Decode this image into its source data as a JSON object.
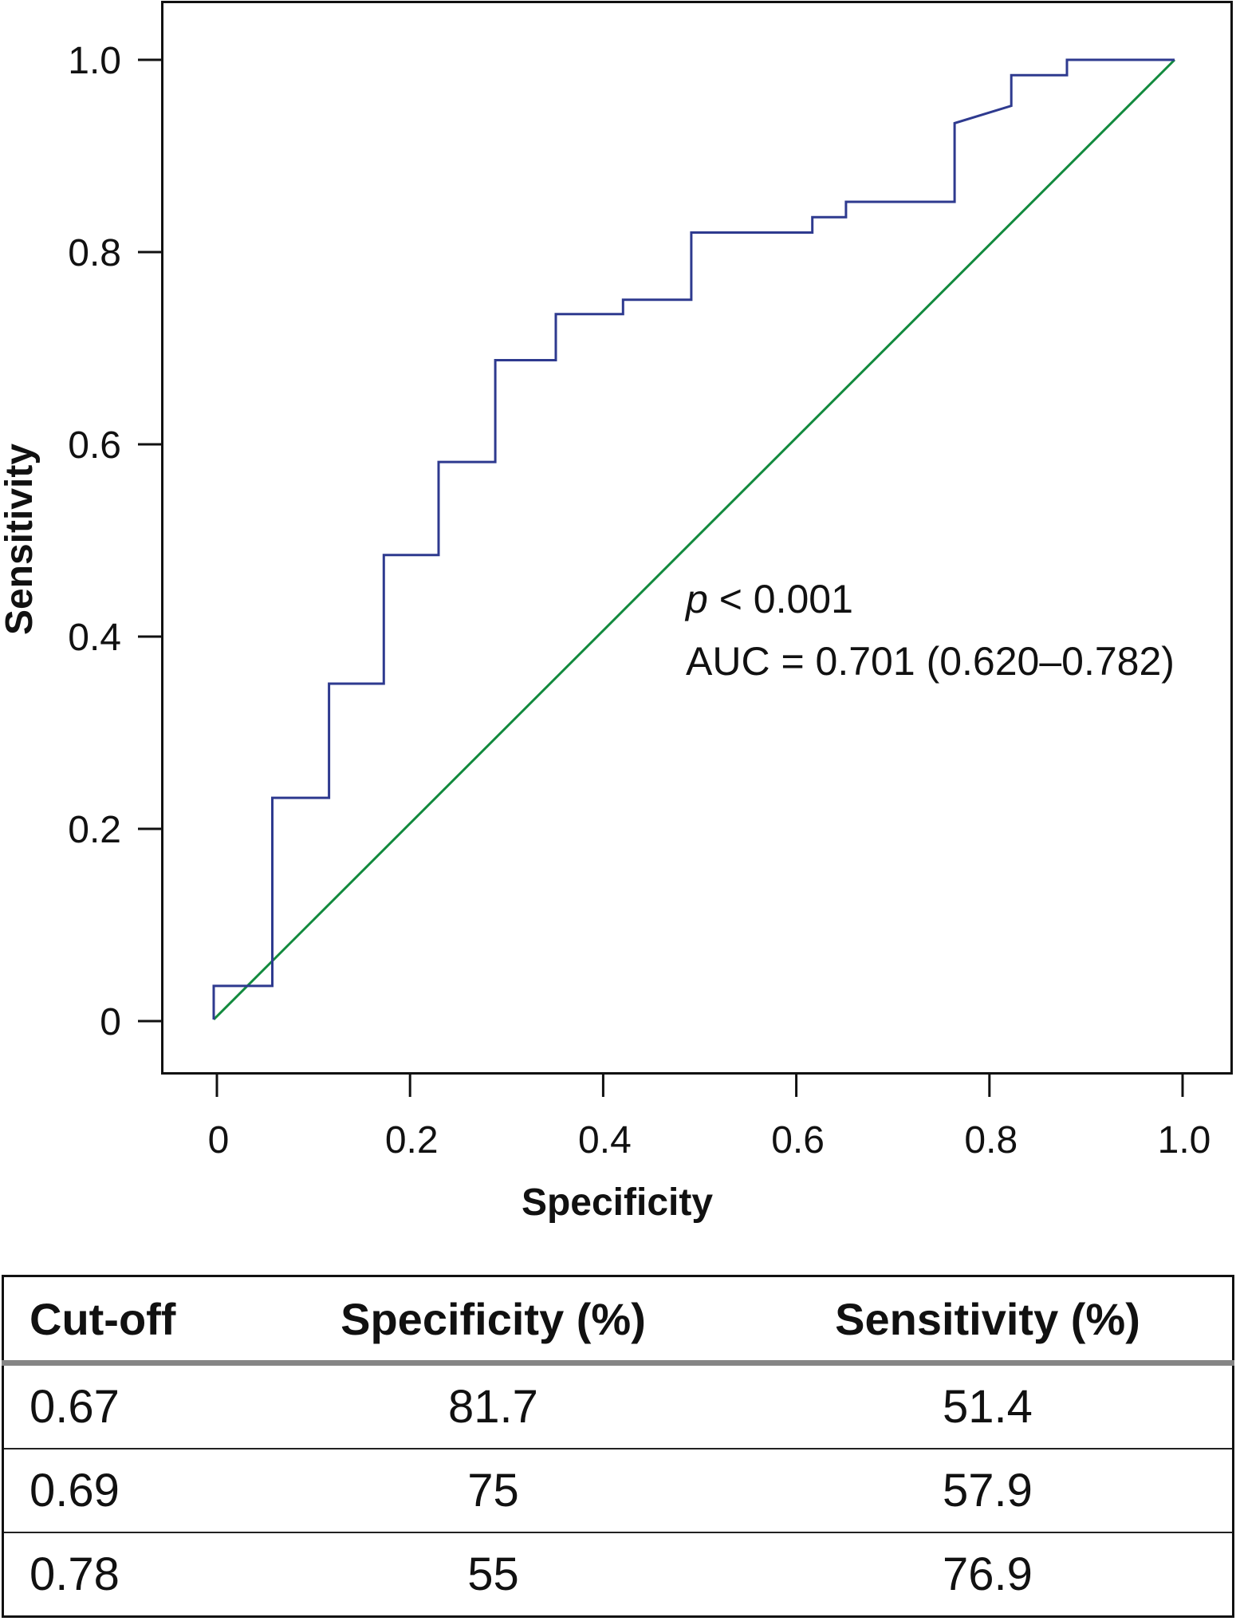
{
  "chart_data": {
    "type": "line",
    "title": "",
    "xlabel": "Specificity",
    "ylabel": "Sensitivity",
    "xlim": [
      0,
      1
    ],
    "ylim": [
      0,
      1
    ],
    "grid": false,
    "x_ticks": [
      "0",
      "0.2",
      "0.4",
      "0.6",
      "0.8",
      "1.0"
    ],
    "x_tick_values": [
      0,
      0.2,
      0.4,
      0.6,
      0.8,
      1.0
    ],
    "y_ticks": [
      "0",
      "0.2",
      "0.4",
      "0.6",
      "0.8",
      "1.0"
    ],
    "y_tick_values": [
      0,
      0.2,
      0.4,
      0.6,
      0.8,
      1.0
    ],
    "series": [
      {
        "name": "ROC curve",
        "color": "#2e3a8f",
        "points": [
          [
            0,
            0
          ],
          [
            0,
            0.035
          ],
          [
            0.061,
            0.035
          ],
          [
            0.061,
            0.231
          ],
          [
            0.12,
            0.231
          ],
          [
            0.12,
            0.35
          ],
          [
            0.177,
            0.35
          ],
          [
            0.177,
            0.484
          ],
          [
            0.234,
            0.484
          ],
          [
            0.234,
            0.581
          ],
          [
            0.293,
            0.581
          ],
          [
            0.293,
            0.687
          ],
          [
            0.356,
            0.687
          ],
          [
            0.356,
            0.735
          ],
          [
            0.426,
            0.735
          ],
          [
            0.426,
            0.75
          ],
          [
            0.497,
            0.75
          ],
          [
            0.497,
            0.82
          ],
          [
            0.623,
            0.82
          ],
          [
            0.623,
            0.836
          ],
          [
            0.658,
            0.836
          ],
          [
            0.658,
            0.852
          ],
          [
            0.771,
            0.852
          ],
          [
            0.771,
            0.934
          ],
          [
            0.83,
            0.952
          ],
          [
            0.83,
            0.984
          ],
          [
            0.888,
            0.984
          ],
          [
            0.888,
            1.0
          ],
          [
            1.0,
            1.0
          ]
        ]
      },
      {
        "name": "Reference line",
        "color": "#128a3e",
        "points": [
          [
            0,
            0
          ],
          [
            1,
            1
          ]
        ]
      }
    ],
    "annotations": {
      "p_symbol": "p",
      "p_rest": " < 0.001",
      "auc": "AUC = 0.701 (0.620–0.782)"
    }
  },
  "table": {
    "headers": [
      "Cut-off",
      "Specificity (%)",
      "Sensitivity (%)"
    ],
    "rows": [
      [
        "0.67",
        "81.7",
        "51.4"
      ],
      [
        "0.69",
        "75",
        "57.9"
      ],
      [
        "0.78",
        "55",
        "76.9"
      ]
    ]
  }
}
